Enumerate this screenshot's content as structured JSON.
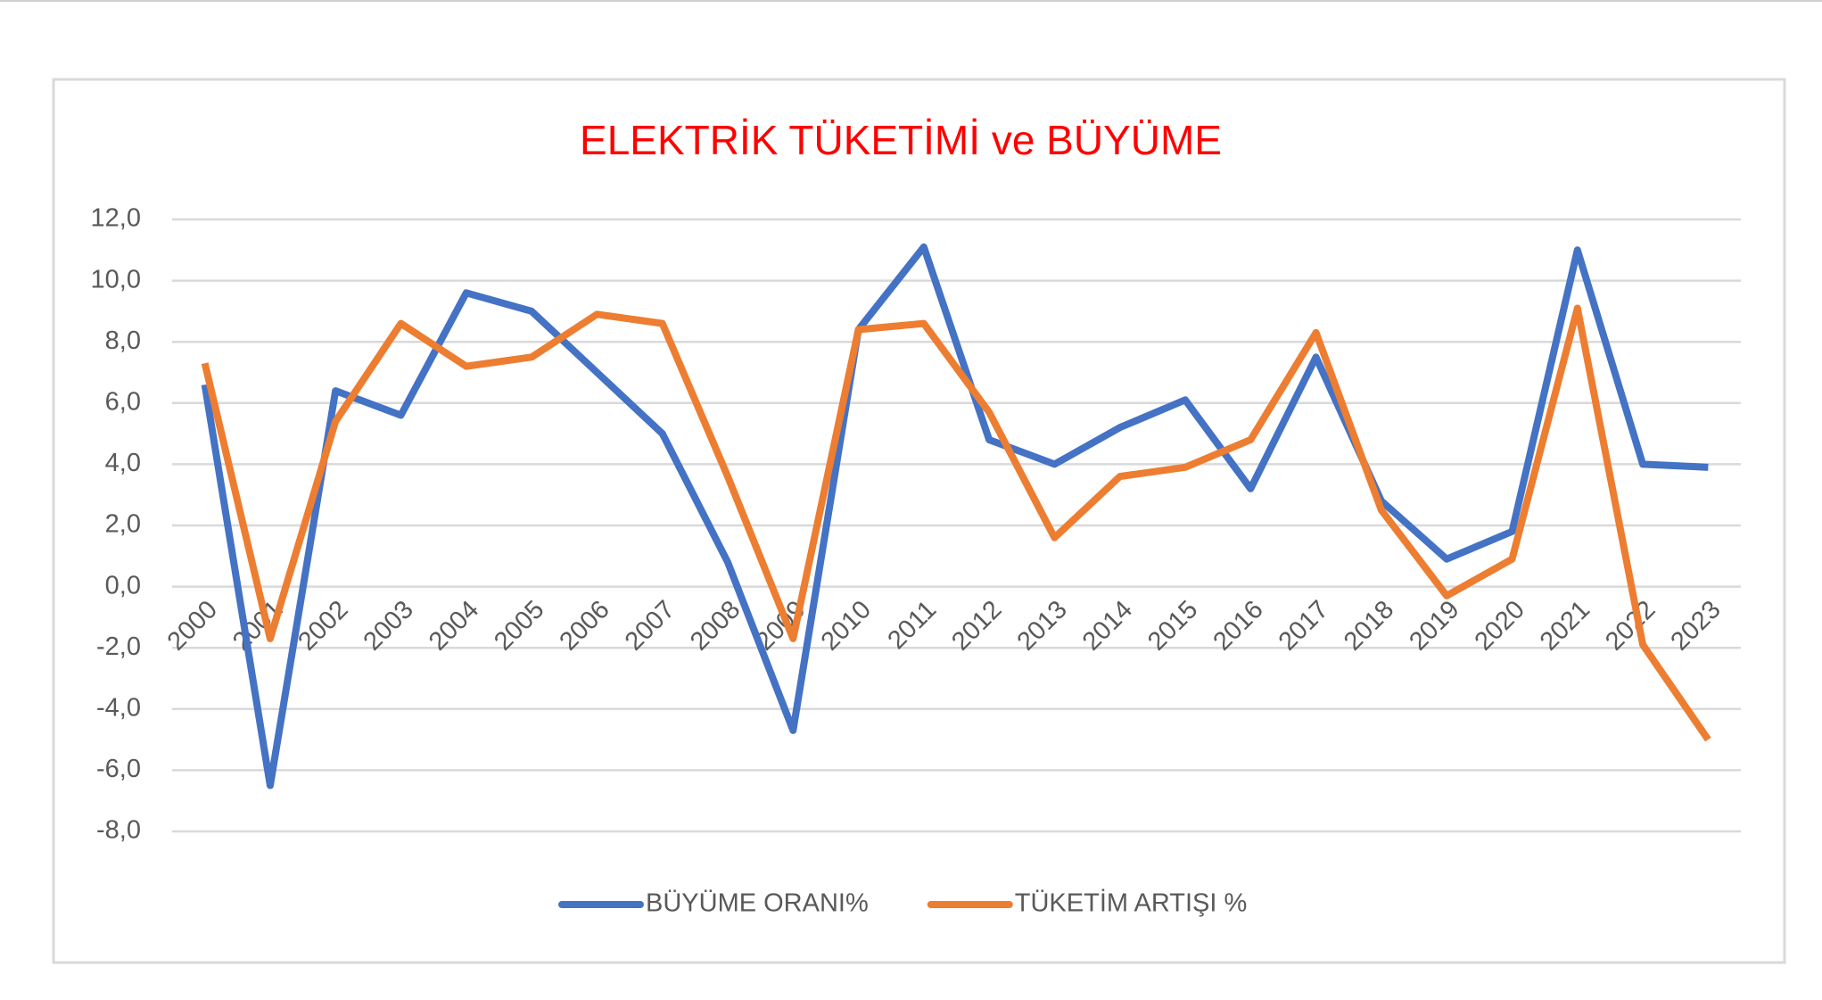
{
  "chart_data": {
    "type": "line",
    "title": "ELEKTRİK TÜKETİMİ ve BÜYÜME",
    "categories": [
      "2000",
      "2001",
      "2002",
      "2003",
      "2004",
      "2005",
      "2006",
      "2007",
      "2008",
      "2009",
      "2010",
      "2011",
      "2012",
      "2013",
      "2014",
      "2015",
      "2016",
      "2017",
      "2018",
      "2019",
      "2020",
      "2021",
      "2022",
      "2023"
    ],
    "series": [
      {
        "name": "BÜYÜME ORANI%",
        "color": "#4472c4",
        "values": [
          6.6,
          -6.5,
          6.4,
          5.6,
          9.6,
          9.0,
          7.0,
          5.0,
          0.8,
          -4.7,
          8.4,
          11.1,
          4.8,
          4.0,
          5.2,
          6.1,
          3.2,
          7.5,
          2.8,
          0.9,
          1.8,
          11.0,
          4.0,
          3.9
        ]
      },
      {
        "name": "TÜKETİM ARTIŞI %",
        "color": "#ed7d31",
        "values": [
          7.3,
          -1.7,
          5.4,
          8.6,
          7.2,
          7.5,
          8.9,
          8.6,
          3.6,
          -1.7,
          8.4,
          8.6,
          5.7,
          1.6,
          3.6,
          3.9,
          4.8,
          8.3,
          2.5,
          -0.3,
          0.9,
          9.1,
          -1.9,
          -5.0
        ]
      }
    ],
    "ylim": [
      -8,
      12
    ],
    "yticks": [
      {
        "value": -8,
        "label": "-8,0"
      },
      {
        "value": -6,
        "label": "-6,0"
      },
      {
        "value": -4,
        "label": "-4,0"
      },
      {
        "value": -2,
        "label": "-2,0"
      },
      {
        "value": 0,
        "label": "0,0"
      },
      {
        "value": 2,
        "label": "2,0"
      },
      {
        "value": 4,
        "label": "4,0"
      },
      {
        "value": 6,
        "label": "6,0"
      },
      {
        "value": 8,
        "label": "8,0"
      },
      {
        "value": 10,
        "label": "10,0"
      },
      {
        "value": 12,
        "label": "12,0"
      }
    ],
    "grid": true,
    "legend": "bottom",
    "title_color": "#ff0000"
  }
}
